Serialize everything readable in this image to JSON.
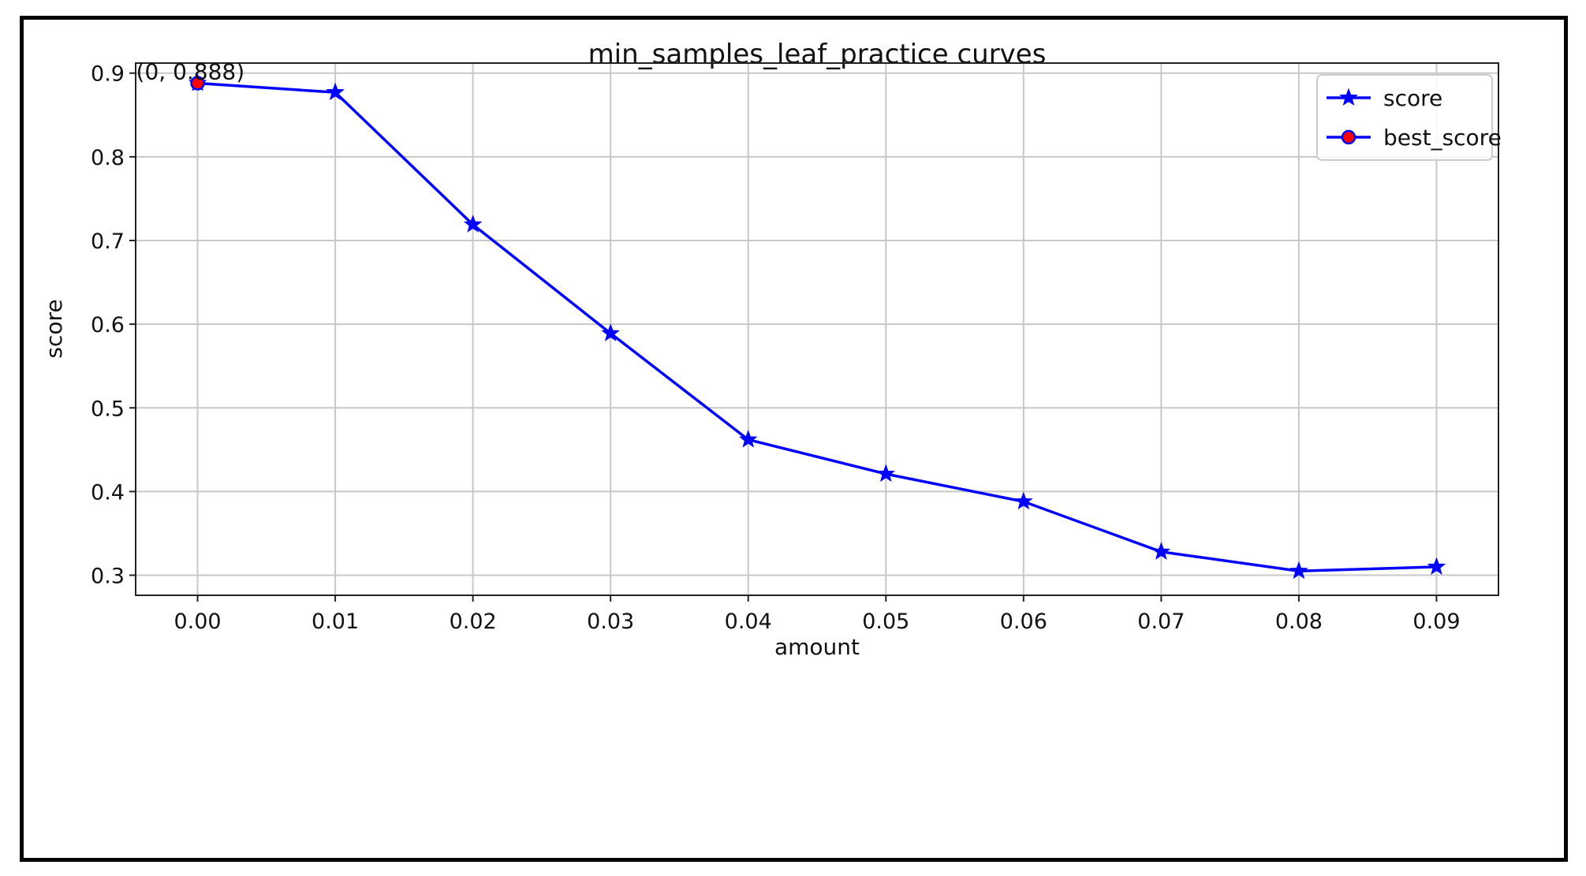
{
  "chart_data": {
    "type": "line",
    "title": "min_samples_leaf_practice curves",
    "xlabel": "amount",
    "ylabel": "score",
    "xlim": [
      -0.0045,
      0.0945
    ],
    "ylim": [
      0.276,
      0.912
    ],
    "x_ticks": [
      0.0,
      0.01,
      0.02,
      0.03,
      0.04,
      0.05,
      0.06,
      0.07,
      0.08,
      0.09
    ],
    "x_tick_labels": [
      "0.00",
      "0.01",
      "0.02",
      "0.03",
      "0.04",
      "0.05",
      "0.06",
      "0.07",
      "0.08",
      "0.09"
    ],
    "y_ticks": [
      0.3,
      0.4,
      0.5,
      0.6,
      0.7,
      0.8,
      0.9
    ],
    "y_tick_labels": [
      "0.3",
      "0.4",
      "0.5",
      "0.6",
      "0.7",
      "0.8",
      "0.9"
    ],
    "grid": true,
    "legend_position": "top-right",
    "series": [
      {
        "name": "score",
        "color": "#0000ff",
        "marker": "star",
        "x": [
          0.0,
          0.01,
          0.02,
          0.03,
          0.04,
          0.05,
          0.06,
          0.07,
          0.08,
          0.09
        ],
        "y": [
          0.888,
          0.877,
          0.719,
          0.589,
          0.462,
          0.421,
          0.388,
          0.328,
          0.305,
          0.31
        ]
      },
      {
        "name": "best_score",
        "color": "#0000ff",
        "marker_face": "#ff0000",
        "marker": "circle",
        "x": [
          0.0
        ],
        "y": [
          0.888
        ]
      }
    ],
    "annotations": [
      {
        "text": "(0, 0.888)",
        "x": 0.0,
        "y": 0.888
      }
    ]
  }
}
